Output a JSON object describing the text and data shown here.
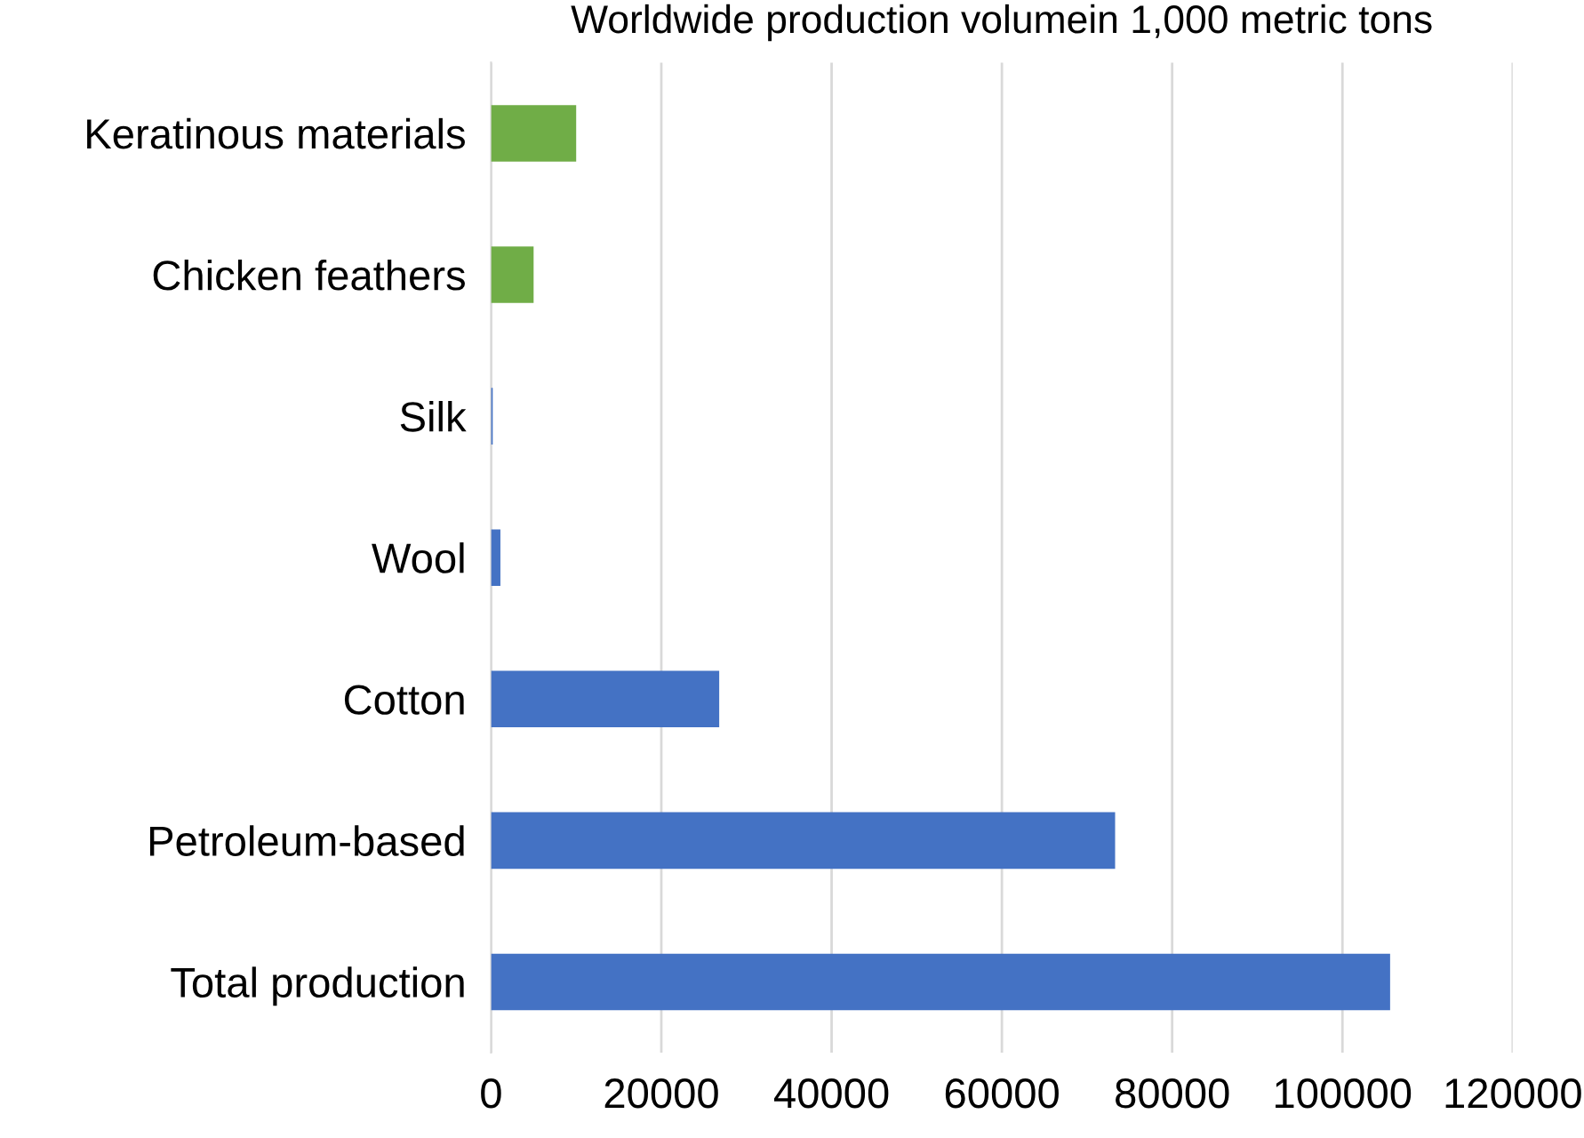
{
  "chart_data": {
    "type": "bar",
    "orientation": "horizontal",
    "title": "Worldwide production volumein 1,000 metric tons",
    "categories": [
      "Keratinous materials",
      "Chicken feathers",
      "Silk",
      "Wool",
      "Cotton",
      "Petroleum-based",
      "Total production"
    ],
    "values": [
      10000,
      5000,
      200,
      1100,
      26800,
      73300,
      105600
    ],
    "colors": [
      "#70ad47",
      "#70ad47",
      "#4472c4",
      "#4472c4",
      "#4472c4",
      "#4472c4",
      "#4472c4"
    ],
    "xlim": [
      0,
      120000
    ],
    "xticks": [
      0,
      20000,
      40000,
      60000,
      80000,
      100000,
      120000
    ],
    "grid": "x",
    "legend": false
  }
}
